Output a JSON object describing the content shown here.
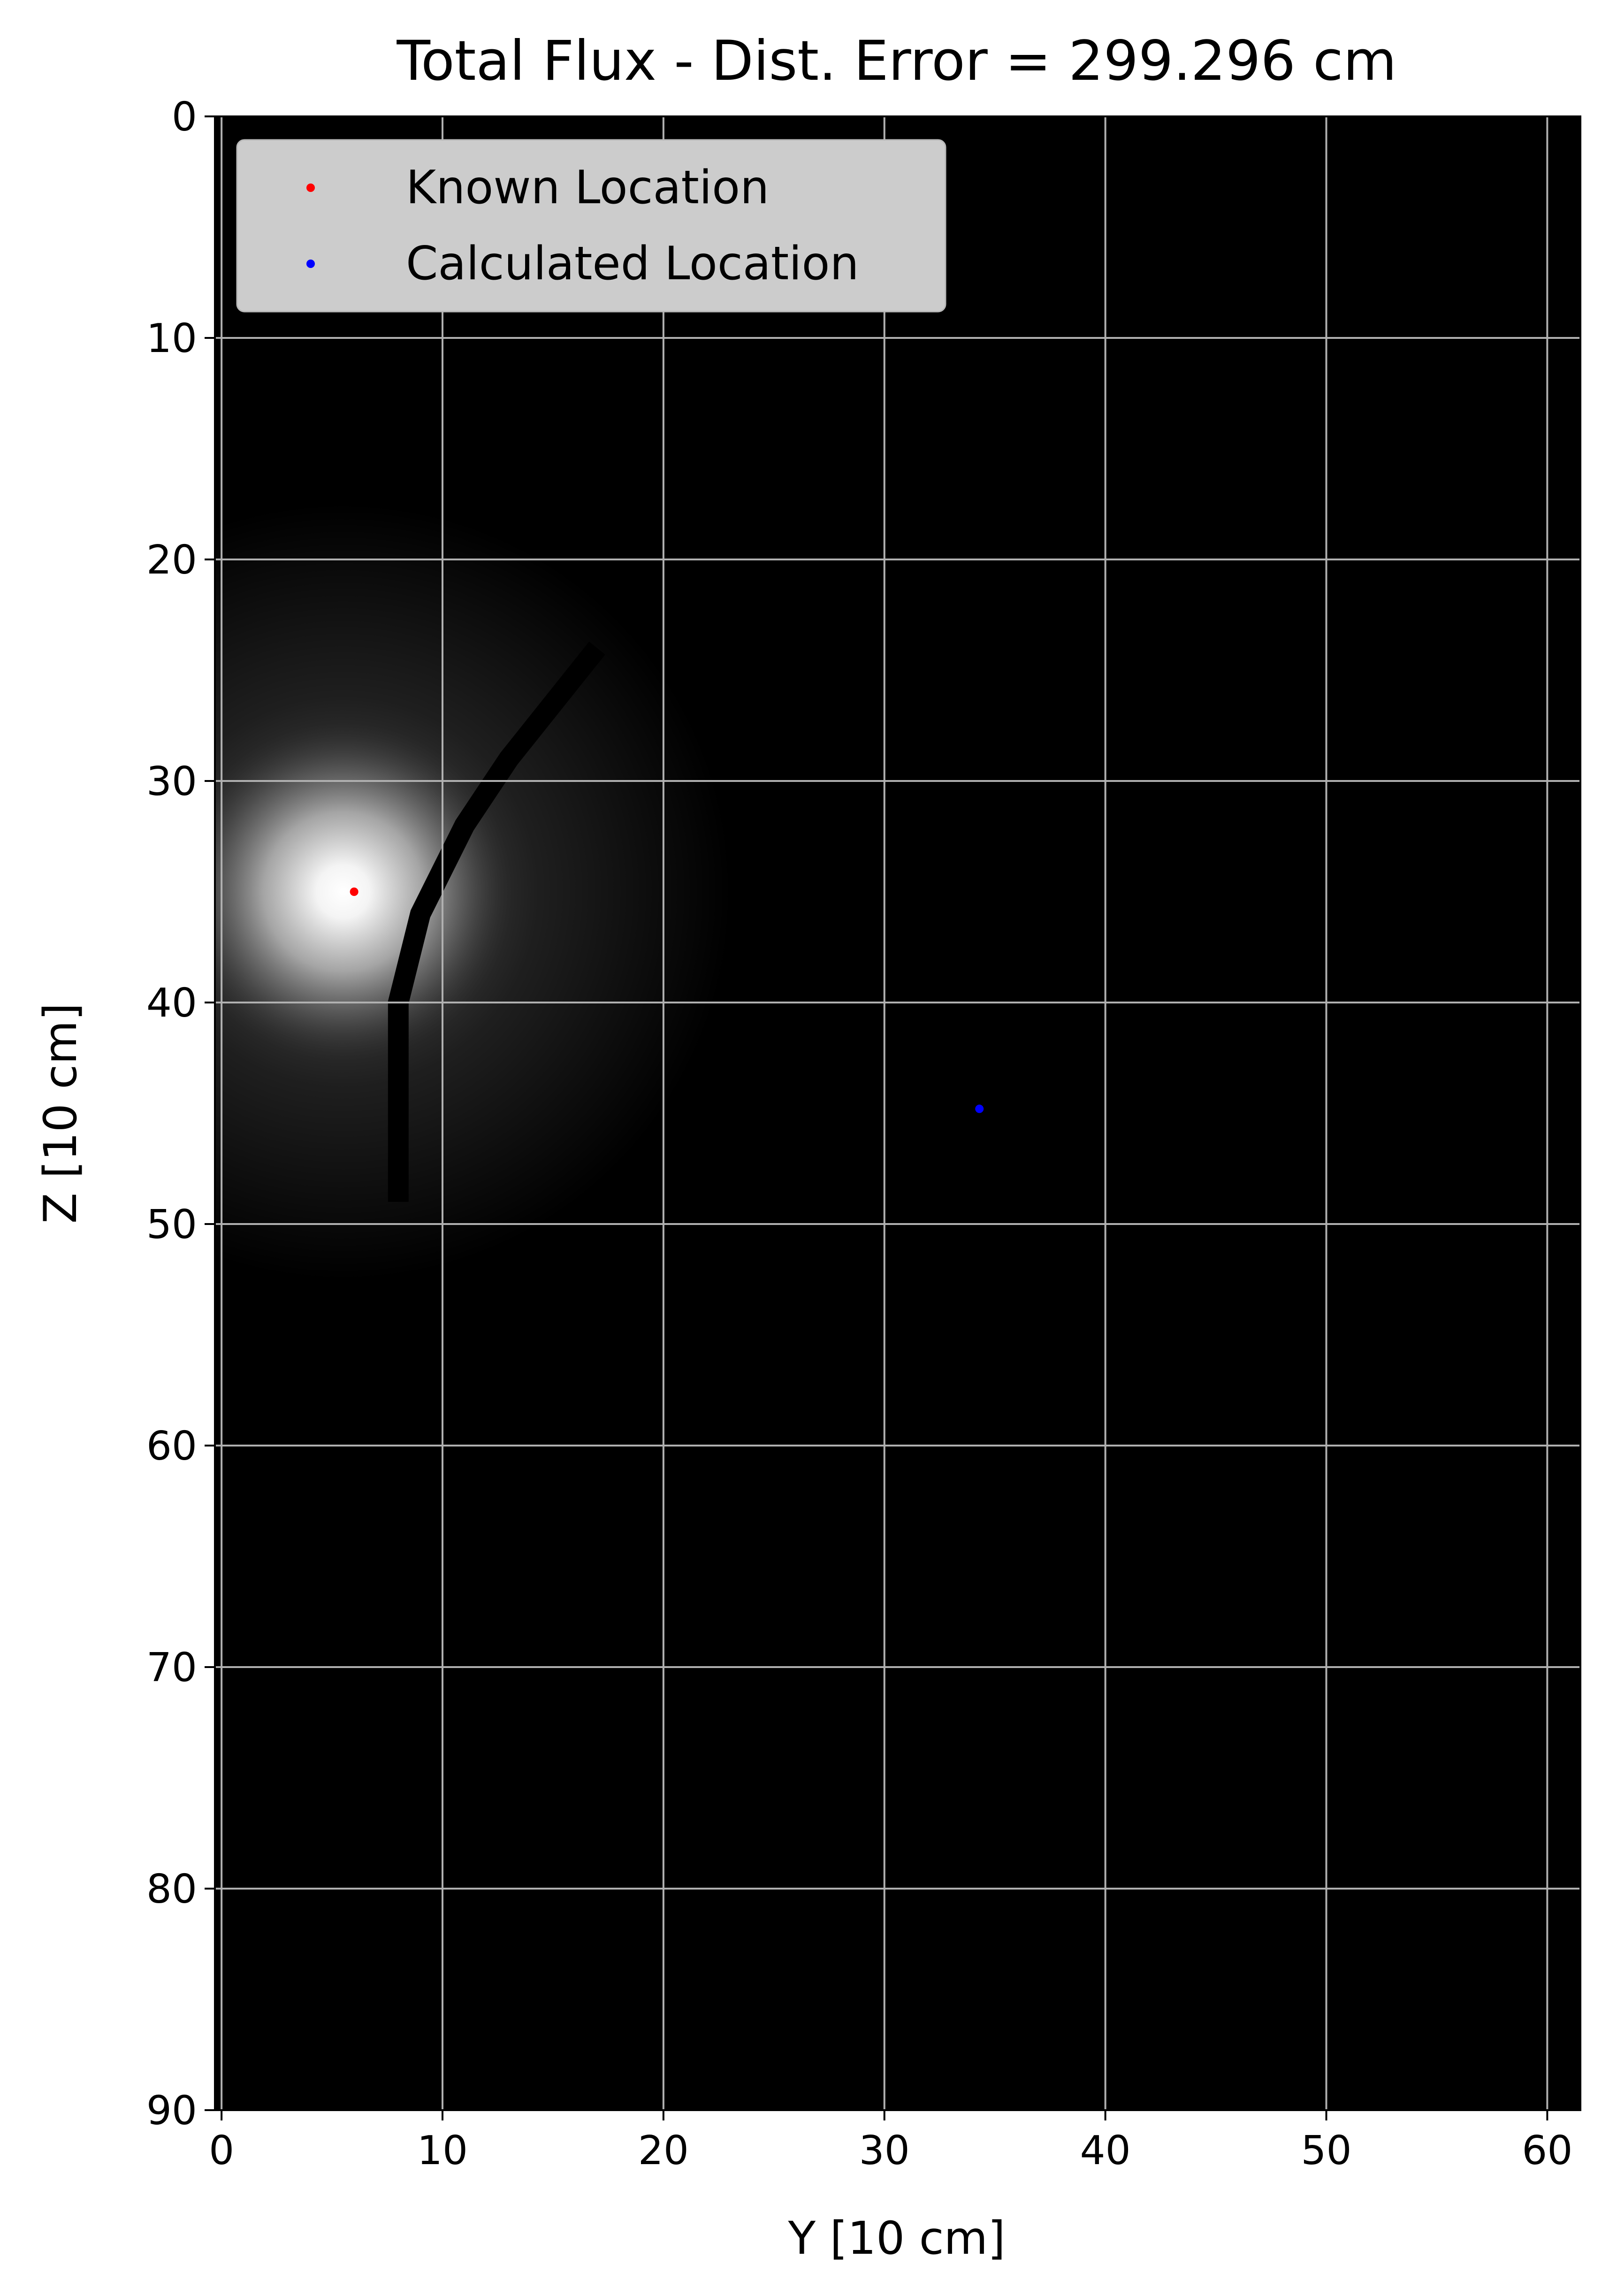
{
  "chart_data": {
    "type": "heatmap",
    "title": "Total Flux - Dist. Error = 299.296 cm",
    "xlabel": "Y [10 cm]",
    "ylabel": "Z [10 cm]",
    "xlim": [
      -0.3,
      61.5
    ],
    "ylim": [
      90,
      0
    ],
    "y_axis_inverted": true,
    "grid": true,
    "legend_position": "top-left",
    "colormap": "gray",
    "x_ticks": [
      "0",
      "10",
      "20",
      "30",
      "40",
      "50",
      "60"
    ],
    "y_ticks": [
      "0",
      "10",
      "20",
      "30",
      "40",
      "50",
      "60",
      "70",
      "80",
      "90"
    ],
    "heatmap_summary": {
      "hotspot_center": [
        5.5,
        35
      ],
      "hotspot_radius": 8,
      "dark_seam": [
        [
          17,
          24
        ],
        [
          13,
          29
        ],
        [
          11,
          32
        ],
        [
          9,
          36
        ],
        [
          8,
          40
        ],
        [
          8,
          49
        ]
      ]
    },
    "series": [
      {
        "name": "Known Location",
        "color": "#ff0000",
        "points": [
          [
            6,
            35
          ]
        ]
      },
      {
        "name": "Calculated Location",
        "color": "#0000ff",
        "points": [
          [
            34.3,
            44.8
          ]
        ]
      }
    ]
  }
}
